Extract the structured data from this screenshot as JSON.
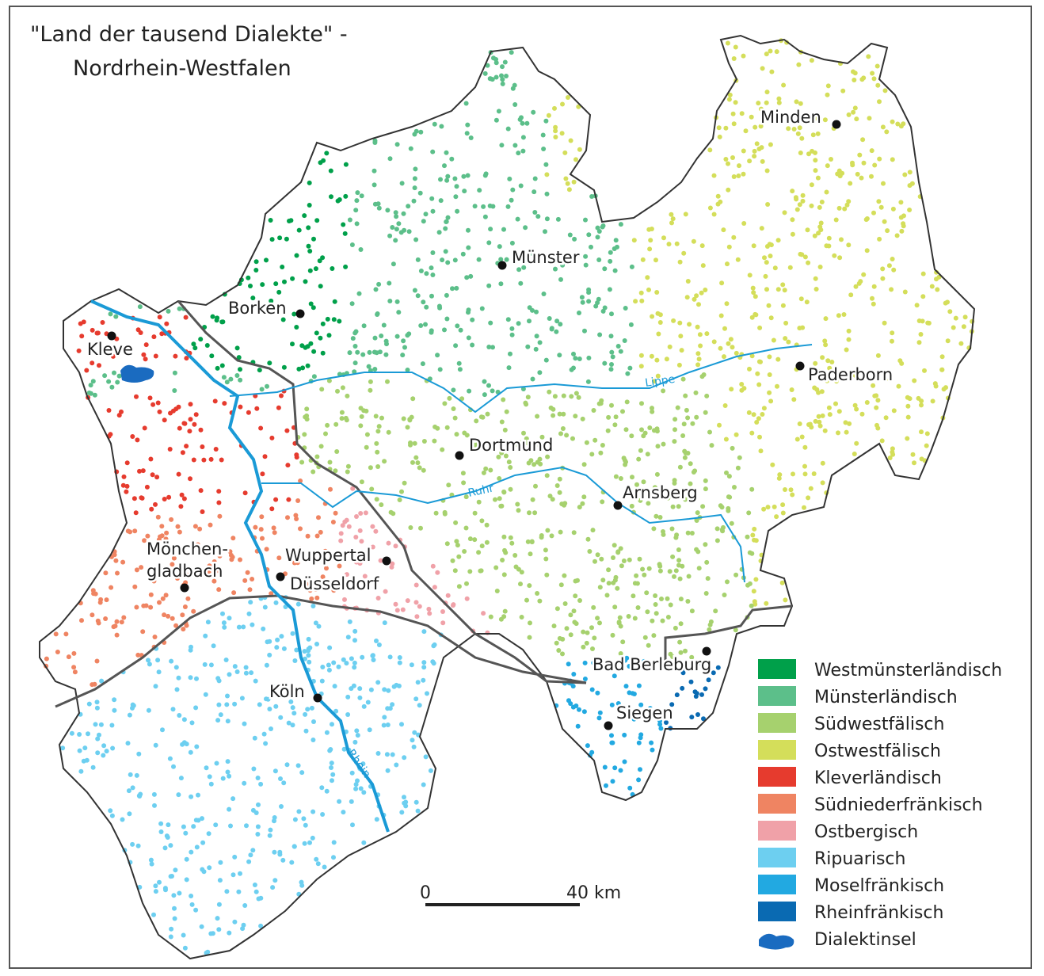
{
  "title": [
    "\"Land der tausend Dialekte\" -",
    "Nordrhein-Westfalen"
  ],
  "cities": [
    "Minden",
    "Münster",
    "Borken",
    "Kleve",
    "Paderborn",
    "Dortmund",
    "Arnsberg",
    "Mönchen-",
    "gladbach",
    "Wuppertal",
    "Düsseldorf",
    "Bad Berleburg",
    "Köln",
    "Siegen"
  ],
  "rivers": [
    "Lippe",
    "Ruhr",
    "Rhein"
  ],
  "legend": [
    {
      "label": "Westmünsterländisch",
      "color": "#00a04a"
    },
    {
      "label": "Münsterländisch",
      "color": "#5cbf8a"
    },
    {
      "label": "Südwestfälisch",
      "color": "#a6d16e"
    },
    {
      "label": "Ostwestfälisch",
      "color": "#d4de5a"
    },
    {
      "label": "Kleverländisch",
      "color": "#e63b2e"
    },
    {
      "label": "Südniederfränkisch",
      "color": "#ef8462"
    },
    {
      "label": "Ostbergisch",
      "color": "#f0a1a8"
    },
    {
      "label": "Ripuarisch",
      "color": "#6dcff0"
    },
    {
      "label": "Moselfränkisch",
      "color": "#22a9e1"
    },
    {
      "label": "Rheinfränkisch",
      "color": "#0a6ab2"
    },
    {
      "label": "Dialektinsel",
      "color": "#1a6bc0"
    }
  ],
  "scale": [
    "0",
    "40 km"
  ]
}
